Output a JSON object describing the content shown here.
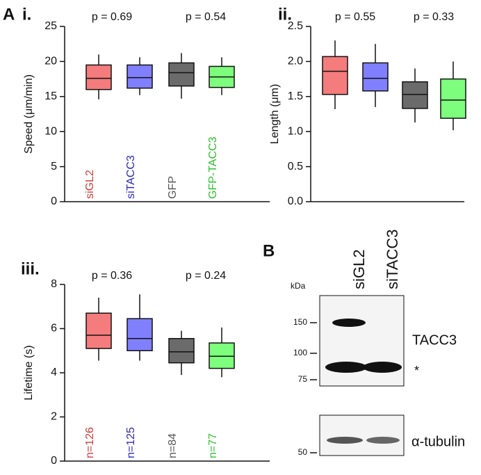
{
  "chart_data": [
    {
      "type": "box",
      "panel": "A",
      "title": "i.",
      "ylabel": "Speed (μm/min)",
      "ylim": [
        0,
        25
      ],
      "yticks": [
        0,
        5,
        10,
        15,
        20,
        25
      ],
      "annotations": [
        "p = 0.69",
        "p = 0.54"
      ],
      "categories": [
        "siGL2",
        "siTACC3",
        "GFP",
        "GFP-TACC3"
      ],
      "label_colors": [
        "#d03a3a",
        "#2a2ac0",
        "#555555",
        "#2fbf2f"
      ],
      "boxes": [
        {
          "color": "#f47c7c",
          "whisker_low": 14.6,
          "q1": 16.0,
          "median": 17.6,
          "q3": 19.5,
          "whisker_high": 21.0
        },
        {
          "color": "#8080ff",
          "whisker_low": 15.2,
          "q1": 16.2,
          "median": 17.7,
          "q3": 19.5,
          "whisker_high": 20.6
        },
        {
          "color": "#6b6b6b",
          "whisker_low": 14.7,
          "q1": 16.5,
          "median": 18.4,
          "q3": 19.8,
          "whisker_high": 21.2
        },
        {
          "color": "#7dff7d",
          "whisker_low": 15.2,
          "q1": 16.3,
          "median": 17.8,
          "q3": 19.3,
          "whisker_high": 20.6
        }
      ]
    },
    {
      "type": "box",
      "title": "ii.",
      "ylabel": "Length (μm)",
      "ylim": [
        0,
        2.5
      ],
      "yticks": [
        {
          "value": 0,
          "label": "0.0"
        },
        0.5,
        {
          "value": 1,
          "label": "1.0"
        },
        1.5,
        {
          "value": 2,
          "label": "2.0"
        },
        2.5
      ],
      "annotations": [
        "p = 0.55",
        "p = 0.33"
      ],
      "boxes": [
        {
          "color": "#f47c7c",
          "whisker_low": 1.32,
          "q1": 1.53,
          "median": 1.86,
          "q3": 2.07,
          "whisker_high": 2.3
        },
        {
          "color": "#8080ff",
          "whisker_low": 1.35,
          "q1": 1.58,
          "median": 1.76,
          "q3": 1.98,
          "whisker_high": 2.25
        },
        {
          "color": "#6b6b6b",
          "whisker_low": 1.13,
          "q1": 1.33,
          "median": 1.53,
          "q3": 1.71,
          "whisker_high": 1.9
        },
        {
          "color": "#7dff7d",
          "whisker_low": 1.02,
          "q1": 1.19,
          "median": 1.45,
          "q3": 1.75,
          "whisker_high": 2.0
        }
      ]
    },
    {
      "type": "box",
      "title": "iii.",
      "ylabel": "Lifetime (s)",
      "ylim": [
        0,
        8
      ],
      "yticks": [
        0,
        2,
        4,
        6,
        8
      ],
      "annotations": [
        "p = 0.36",
        "p = 0.24"
      ],
      "categories": [
        "n=126",
        "n=125",
        "n=84",
        "n=77"
      ],
      "label_colors": [
        "#d03a3a",
        "#2a2ac0",
        "#555555",
        "#2fbf2f"
      ],
      "boxes": [
        {
          "color": "#f47c7c",
          "whisker_low": 4.55,
          "q1": 5.1,
          "median": 5.7,
          "q3": 6.7,
          "whisker_high": 7.4
        },
        {
          "color": "#8080ff",
          "whisker_low": 4.55,
          "q1": 5.0,
          "median": 5.55,
          "q3": 6.45,
          "whisker_high": 7.55
        },
        {
          "color": "#6b6b6b",
          "whisker_low": 3.9,
          "q1": 4.45,
          "median": 4.95,
          "q3": 5.55,
          "whisker_high": 5.9
        },
        {
          "color": "#7dff7d",
          "whisker_low": 3.8,
          "q1": 4.2,
          "median": 4.75,
          "q3": 5.35,
          "whisker_high": 6.05
        }
      ]
    }
  ],
  "blot": {
    "panel": "B",
    "unit": "kDa",
    "lanes": [
      "siGL2",
      "siTACC3"
    ],
    "markers": [
      "150",
      "100",
      "75",
      "50"
    ],
    "bands": [
      "TACC3",
      "*",
      "α-tubulin"
    ]
  }
}
